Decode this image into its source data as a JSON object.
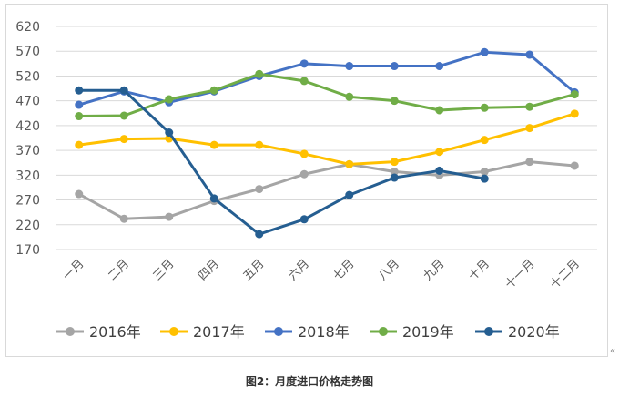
{
  "caption": "图2：月度进口价格走势图",
  "chart_data": {
    "type": "line",
    "categories": [
      "一月",
      "二月",
      "三月",
      "四月",
      "五月",
      "六月",
      "七月",
      "八月",
      "九月",
      "十月",
      "十一月",
      "十二月"
    ],
    "ylim": [
      170,
      620
    ],
    "yticks": [
      170,
      220,
      270,
      320,
      370,
      420,
      470,
      520,
      570,
      620
    ],
    "grid": true,
    "legend_position": "bottom",
    "series": [
      {
        "name": "2016年",
        "color": "#a5a5a5",
        "values": [
          282,
          232,
          236,
          268,
          292,
          322,
          342,
          327,
          320,
          327,
          347,
          339
        ]
      },
      {
        "name": "2017年",
        "color": "#ffc000",
        "values": [
          381,
          393,
          394,
          381,
          381,
          363,
          342,
          347,
          367,
          391,
          415,
          444
        ]
      },
      {
        "name": "2018年",
        "color": "#4472c4",
        "values": [
          462,
          489,
          467,
          489,
          520,
          545,
          540,
          540,
          540,
          568,
          563,
          487
        ]
      },
      {
        "name": "2019年",
        "color": "#70ad47",
        "values": [
          439,
          440,
          473,
          491,
          524,
          510,
          478,
          470,
          451,
          456,
          458,
          483
        ]
      },
      {
        "name": "2020年",
        "color": "#255e91",
        "values": [
          491,
          491,
          406,
          273,
          201,
          231,
          280,
          315,
          329,
          313,
          null,
          null
        ]
      }
    ]
  }
}
